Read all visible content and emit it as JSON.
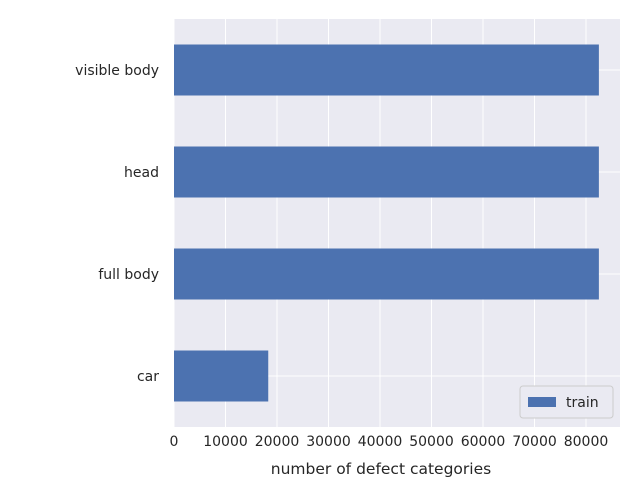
{
  "chart_data": {
    "type": "bar",
    "orientation": "horizontal",
    "categories": [
      "car",
      "full body",
      "head",
      "visible body"
    ],
    "series": [
      {
        "name": "train",
        "values": [
          18300,
          82500,
          82500,
          82500
        ],
        "color": "#4c72b0"
      }
    ],
    "title": "",
    "xlabel": "number of defect categories",
    "ylabel": "",
    "xlim": [
      0,
      86600
    ],
    "xticks": [
      0,
      10000,
      20000,
      30000,
      40000,
      50000,
      60000,
      70000,
      80000
    ],
    "xtick_labels": [
      "0",
      "10000",
      "20000",
      "30000",
      "40000",
      "50000",
      "60000",
      "70000",
      "80000"
    ],
    "grid": true,
    "legend": {
      "position": "lower-right",
      "entries": [
        "train"
      ]
    },
    "style": {
      "background": "#eaeaf2",
      "grid_color": "#ffffff"
    }
  }
}
